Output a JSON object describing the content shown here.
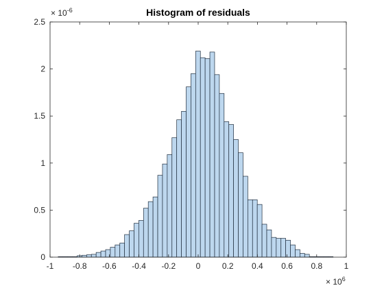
{
  "chart_data": {
    "type": "bar",
    "title": "Histogram of residuals",
    "xlabel": "",
    "ylabel": "",
    "x_multiplier": {
      "base": "× 10",
      "exponent": "6"
    },
    "y_multiplier": {
      "base": "× 10",
      "exponent": "-6"
    },
    "xlim": [
      -1,
      1
    ],
    "ylim": [
      0,
      2.5
    ],
    "x_ticks": [
      -1,
      -0.8,
      -0.6,
      -0.4,
      -0.2,
      0,
      0.2,
      0.4,
      0.6,
      0.8,
      1
    ],
    "x_tick_labels": [
      "-1",
      "-0.8",
      "-0.6",
      "-0.4",
      "-0.2",
      "0",
      "0.2",
      "0.4",
      "0.6",
      "0.8",
      "1"
    ],
    "y_ticks": [
      0,
      0.5,
      1,
      1.5,
      2,
      2.5
    ],
    "y_tick_labels": [
      "0",
      "0.5",
      "1",
      "1.5",
      "2",
      "2.5"
    ],
    "bin_width": 0.032,
    "bin_start": -0.945,
    "values": [
      0.005,
      0.005,
      0.005,
      0.005,
      0.015,
      0.02,
      0.025,
      0.03,
      0.05,
      0.065,
      0.08,
      0.105,
      0.13,
      0.15,
      0.24,
      0.28,
      0.36,
      0.39,
      0.52,
      0.59,
      0.64,
      0.87,
      0.99,
      1.09,
      1.27,
      1.46,
      1.55,
      1.81,
      1.95,
      2.19,
      2.12,
      2.11,
      2.18,
      1.94,
      1.74,
      1.44,
      1.41,
      1.25,
      1.11,
      0.86,
      0.61,
      0.61,
      0.56,
      0.35,
      0.29,
      0.21,
      0.2,
      0.2,
      0.18,
      0.13,
      0.08,
      0.04,
      0.03,
      0.005,
      0.005,
      0.005,
      0.005,
      0.005
    ],
    "grid": false,
    "legend": "none",
    "colors": {
      "bar_fill": "#bdd7ee",
      "bar_edge": "#1f2d3d",
      "axis": "#262626"
    }
  }
}
